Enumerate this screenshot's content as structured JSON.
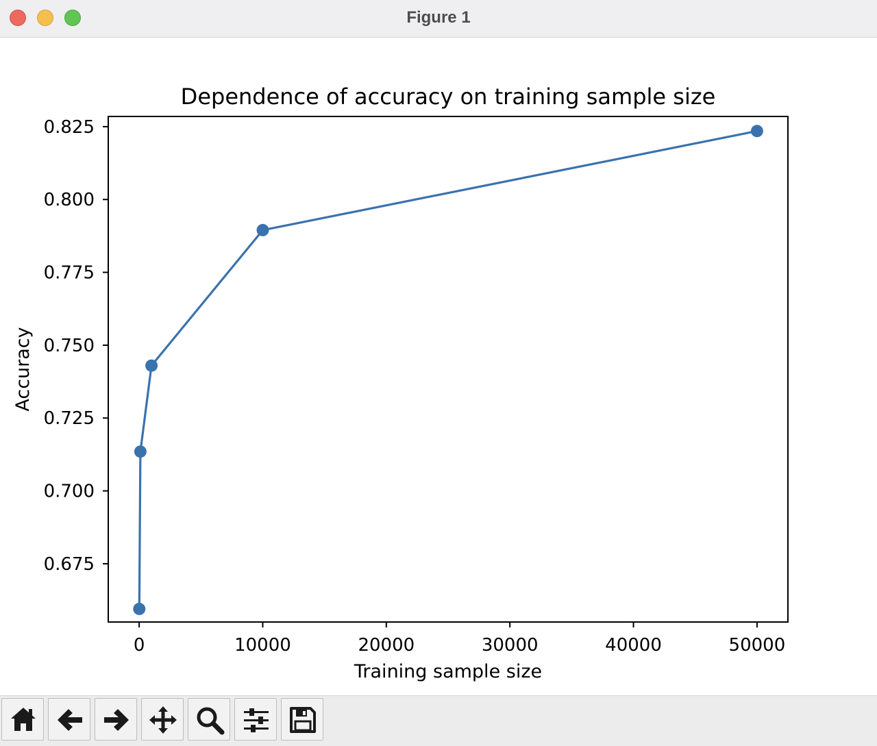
{
  "window": {
    "title": "Figure 1"
  },
  "toolbar": {
    "buttons": [
      {
        "name": "home-button",
        "icon": "home-icon"
      },
      {
        "name": "back-button",
        "icon": "arrow-left-icon"
      },
      {
        "name": "forward-button",
        "icon": "arrow-right-icon"
      },
      {
        "name": "pan-button",
        "icon": "move-arrows-icon"
      },
      {
        "name": "zoom-button",
        "icon": "magnifier-icon"
      },
      {
        "name": "configure-subplots-button",
        "icon": "sliders-icon"
      },
      {
        "name": "save-button",
        "icon": "floppy-disk-icon"
      }
    ]
  },
  "colors": {
    "series": "#3a72ad",
    "axes": "#000000",
    "titlebar": "#efeff1",
    "toolbar": "#ececec"
  },
  "chart_data": {
    "type": "line",
    "title": "Dependence of accuracy on training sample size",
    "xlabel": "Training sample size",
    "ylabel": "Accuracy",
    "xlim": [
      -2500,
      52500
    ],
    "ylim": [
      0.655,
      0.8285
    ],
    "xticks": [
      0,
      10000,
      20000,
      30000,
      40000,
      50000
    ],
    "xtick_labels": [
      "0",
      "10000",
      "20000",
      "30000",
      "40000",
      "50000"
    ],
    "yticks": [
      0.675,
      0.7,
      0.725,
      0.75,
      0.775,
      0.8,
      0.825
    ],
    "ytick_labels": [
      "0.675",
      "0.700",
      "0.725",
      "0.750",
      "0.775",
      "0.800",
      "0.825"
    ],
    "grid": false,
    "series": [
      {
        "marker": "circle",
        "x": [
          10,
          100,
          1000,
          10000,
          50000
        ],
        "y": [
          0.6595,
          0.7135,
          0.743,
          0.7895,
          0.8235
        ]
      }
    ]
  }
}
